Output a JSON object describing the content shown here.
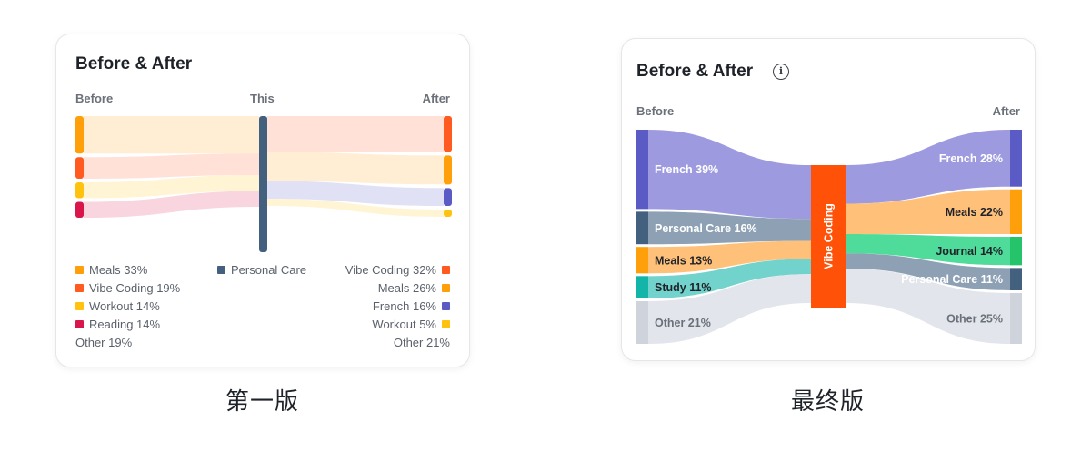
{
  "v1": {
    "title": "Before & After",
    "headers": {
      "before": "Before",
      "this": "This",
      "after": "After"
    },
    "colors": {
      "Meals": "#ff9f0a",
      "Vibe Coding": "#ff5a1f",
      "Workout": "#ffc30f",
      "Reading": "#d9164b",
      "Personal Care": "#44607f",
      "French": "#5b5bc6"
    },
    "before_nodes": [
      {
        "name": "Meals",
        "pct": 33
      },
      {
        "name": "Vibe Coding",
        "pct": 19
      },
      {
        "name": "Workout",
        "pct": 14
      },
      {
        "name": "Reading",
        "pct": 14
      }
    ],
    "this_node": {
      "name": "Personal Care"
    },
    "after_nodes": [
      {
        "name": "Vibe Coding",
        "pct": 32
      },
      {
        "name": "Meals",
        "pct": 26
      },
      {
        "name": "French",
        "pct": 16
      },
      {
        "name": "Workout",
        "pct": 5
      }
    ],
    "legend_left": [
      {
        "text": "Meals 33%",
        "color": "#ff9f0a"
      },
      {
        "text": "Vibe Coding 19%",
        "color": "#ff5a1f"
      },
      {
        "text": "Workout 14%",
        "color": "#ffc30f"
      },
      {
        "text": "Reading 14%",
        "color": "#d9164b"
      },
      {
        "text": "Other 19%",
        "color": ""
      }
    ],
    "legend_middle": {
      "text": "Personal Care",
      "color": "#44607f"
    },
    "legend_right": [
      {
        "text": "Vibe Coding 32%",
        "color": "#ff5a1f"
      },
      {
        "text": "Meals 26%",
        "color": "#ff9f0a"
      },
      {
        "text": "French 16%",
        "color": "#5b5bc6"
      },
      {
        "text": "Workout 5%",
        "color": "#ffc30f"
      },
      {
        "text": "Other 21%",
        "color": ""
      }
    ]
  },
  "v2": {
    "title": "Before & After",
    "info_icon": "info-icon",
    "headers": {
      "before": "Before",
      "after": "After"
    },
    "center_node": {
      "name": "Vibe Coding",
      "color": "#ff5208"
    },
    "before_nodes": [
      {
        "label": "French 39%",
        "pct": 39,
        "color": "#5b5bc6",
        "band": "#9d9ae0"
      },
      {
        "label": "Personal Care 16%",
        "pct": 16,
        "color": "#44607f",
        "band": "#8da0b4"
      },
      {
        "label": "Meals 13%",
        "pct": 13,
        "color": "#ff9f0a",
        "band": "#ffc07a"
      },
      {
        "label": "Study 11%",
        "pct": 11,
        "color": "#13b5a9",
        "band": "#72d3cc"
      },
      {
        "label": "Other 21%",
        "pct": 21,
        "color": "#cfd3dc",
        "band": "#e2e5ec"
      }
    ],
    "after_nodes": [
      {
        "label": "French 28%",
        "pct": 28,
        "color": "#5b5bc6",
        "band": "#9d9ae0"
      },
      {
        "label": "Meals 22%",
        "pct": 22,
        "color": "#ff9f0a",
        "band": "#ffc07a"
      },
      {
        "label": "Journal 14%",
        "pct": 14,
        "color": "#25c46a",
        "band": "#4fdb9a"
      },
      {
        "label": "Personal Care 11%",
        "pct": 11,
        "color": "#44607f",
        "band": "#8da0b4"
      },
      {
        "label": "Other 25%",
        "pct": 25,
        "color": "#cfd3dc",
        "band": "#e2e5ec"
      }
    ]
  },
  "captions": {
    "first": "第一版",
    "final": "最终版"
  }
}
